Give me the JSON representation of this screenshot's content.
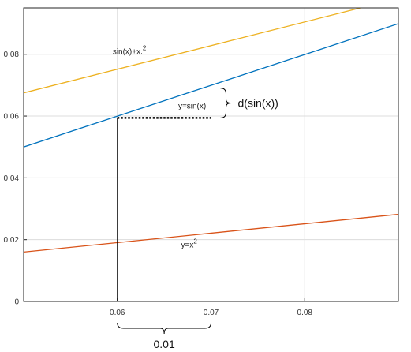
{
  "chart_data": {
    "type": "line",
    "title": "",
    "xlabel": "",
    "ylabel": "",
    "xlim": [
      0.05,
      0.09
    ],
    "ylim": [
      0,
      0.095
    ],
    "grid": true,
    "x_ticks": [
      {
        "value": 0.06,
        "label": "0.06"
      },
      {
        "value": 0.07,
        "label": "0.07"
      },
      {
        "value": 0.08,
        "label": "0.08"
      }
    ],
    "y_ticks": [
      {
        "value": 0,
        "label": "0"
      },
      {
        "value": 0.02,
        "label": "0.02"
      },
      {
        "value": 0.04,
        "label": "0.04"
      },
      {
        "value": 0.06,
        "label": "0.06"
      },
      {
        "value": 0.08,
        "label": "0.08"
      }
    ],
    "series": [
      {
        "name": "sin(x)+x.^2",
        "color": "#EDB120",
        "x": [
          0.05,
          0.09
        ],
        "y": [
          0.0675,
          0.0981
        ]
      },
      {
        "name": "y=sin(x)",
        "color": "#0072BD",
        "x": [
          0.05,
          0.09
        ],
        "y": [
          0.05,
          0.0899
        ]
      },
      {
        "name": "y=x^2",
        "color": "#D95319",
        "x": [
          0.05,
          0.09
        ],
        "y": [
          0.016,
          0.0282
        ]
      }
    ],
    "series_labels": [
      {
        "base": "sin(x)+x.",
        "sup": "2",
        "x": 0.0595,
        "y": 0.08
      },
      {
        "base": "y=sin(x)",
        "sup": "",
        "x": 0.0665,
        "y": 0.0625
      },
      {
        "base": "y=x",
        "sup": "2",
        "x": 0.0668,
        "y": 0.0175
      }
    ],
    "annotations": {
      "dx_label": "0.01",
      "dy_label": "d(sin(x))",
      "point_a": {
        "x": 0.06,
        "y": 0.0594
      },
      "point_b": {
        "x": 0.07,
        "y": 0.069
      }
    }
  }
}
